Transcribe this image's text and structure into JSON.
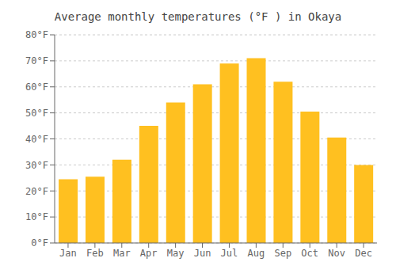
{
  "chart_data": {
    "type": "bar",
    "title": "Average monthly temperatures (°F ) in Okaya",
    "categories": [
      "Jan",
      "Feb",
      "Mar",
      "Apr",
      "May",
      "Jun",
      "Jul",
      "Aug",
      "Sep",
      "Oct",
      "Nov",
      "Dec"
    ],
    "values": [
      24.5,
      25.5,
      32,
      45,
      54,
      61,
      69,
      71,
      62,
      50.5,
      40.5,
      30
    ],
    "color": "#FFC020",
    "ylim": [
      0,
      80
    ],
    "yticks": [
      {
        "value": 0,
        "label": "0°F"
      },
      {
        "value": 10,
        "label": "10°F"
      },
      {
        "value": 20,
        "label": "20°F"
      },
      {
        "value": 30,
        "label": "30°F"
      },
      {
        "value": 40,
        "label": "40°F"
      },
      {
        "value": 50,
        "label": "50°F"
      },
      {
        "value": 60,
        "label": "60°F"
      },
      {
        "value": 70,
        "label": "70°F"
      },
      {
        "value": 80,
        "label": "80°F"
      }
    ],
    "grid": true
  }
}
